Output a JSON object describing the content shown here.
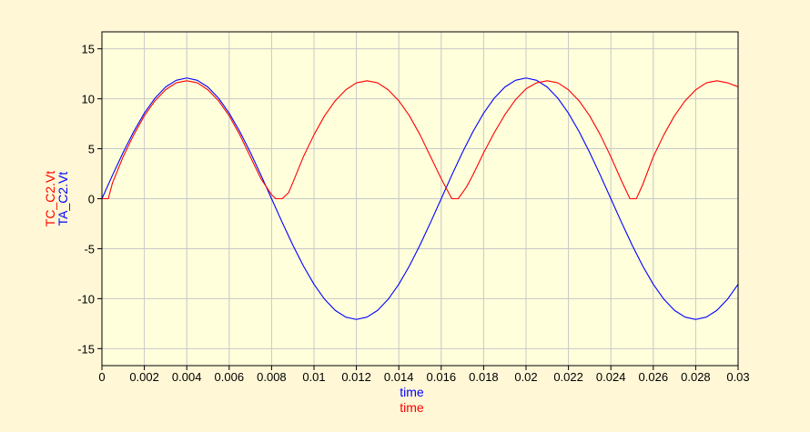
{
  "colors": {
    "background": "#fff7d6",
    "plot_background": "#ffffdc",
    "grid": "#c8c8c8",
    "axis": "#000000"
  },
  "chart_data": {
    "type": "line",
    "grid": true,
    "xlim": [
      0,
      0.03
    ],
    "ylim": [
      -16.7,
      16.7
    ],
    "x_ticks": [
      0,
      0.002,
      0.004,
      0.006,
      0.008,
      0.01,
      0.012,
      0.014,
      0.016,
      0.018,
      0.02,
      0.022,
      0.024,
      0.026,
      0.028,
      0.03
    ],
    "x_tick_labels": [
      "0",
      "0.002",
      "0.004",
      "0.006",
      "0.008",
      "0.01",
      "0.012",
      "0.014",
      "0.016",
      "0.018",
      "0.02",
      "0.022",
      "0.024",
      "0.026",
      "0.028",
      "0.03"
    ],
    "y_ticks": [
      15,
      10,
      5,
      0,
      -5,
      -10,
      -15
    ],
    "y_tick_labels": [
      "15",
      "10",
      "5",
      "0",
      "-5",
      "-10",
      "-15"
    ],
    "xlabels": [
      {
        "text": "time",
        "color": "#0000ff"
      },
      {
        "text": "time",
        "color": "#ff0000"
      }
    ],
    "ylabels": [
      {
        "text": "TC_C2.Vt",
        "color": "#ff0000"
      },
      {
        "text": "TA_C2.Vt",
        "color": "#0000ff"
      }
    ],
    "series": [
      {
        "name": "TA_C2.Vt",
        "color": "#0000ff",
        "x": [
          0,
          0.0005,
          0.001,
          0.0015,
          0.002,
          0.0025,
          0.003,
          0.0035,
          0.004,
          0.0045,
          0.005,
          0.0055,
          0.006,
          0.0065,
          0.007,
          0.0075,
          0.008,
          0.0085,
          0.009,
          0.0095,
          0.01,
          0.0105,
          0.011,
          0.0115,
          0.012,
          0.0125,
          0.013,
          0.0135,
          0.014,
          0.0145,
          0.015,
          0.0155,
          0.016,
          0.0165,
          0.017,
          0.0175,
          0.018,
          0.0185,
          0.019,
          0.0195,
          0.02,
          0.0205,
          0.021,
          0.0215,
          0.022,
          0.0225,
          0.023,
          0.0235,
          0.024,
          0.0245,
          0.025,
          0.0255,
          0.026,
          0.0265,
          0.027,
          0.0275,
          0.028,
          0.0285,
          0.029,
          0.0295,
          0.03
        ],
        "values": [
          0,
          2.36,
          4.63,
          6.72,
          8.56,
          10.06,
          11.17,
          11.85,
          12.08,
          11.85,
          11.17,
          10.06,
          8.56,
          6.72,
          4.63,
          2.36,
          0.0,
          -2.36,
          -4.63,
          -6.72,
          -8.56,
          -10.06,
          -11.17,
          -11.85,
          -12.08,
          -11.85,
          -11.17,
          -10.06,
          -8.56,
          -6.72,
          -4.63,
          -2.36,
          0.0,
          2.36,
          4.63,
          6.72,
          8.56,
          10.06,
          11.17,
          11.85,
          12.08,
          11.85,
          11.17,
          10.06,
          8.56,
          6.72,
          4.63,
          2.36,
          0.0,
          -2.36,
          -4.63,
          -6.72,
          -8.56,
          -10.06,
          -11.17,
          -11.85,
          -12.08,
          -11.85,
          -11.17,
          -10.06,
          -8.56
        ]
      },
      {
        "name": "TC_C2.Vt",
        "color": "#ff0000",
        "x": [
          0,
          0.0003,
          0.0005,
          0.001,
          0.0015,
          0.002,
          0.0025,
          0.003,
          0.0035,
          0.004,
          0.0045,
          0.005,
          0.0055,
          0.006,
          0.0065,
          0.007,
          0.0075,
          0.008,
          0.0082,
          0.0085,
          0.0088,
          0.009,
          0.0095,
          0.01,
          0.0105,
          0.011,
          0.0115,
          0.012,
          0.0125,
          0.013,
          0.0135,
          0.014,
          0.0145,
          0.015,
          0.0155,
          0.016,
          0.0165,
          0.0168,
          0.017,
          0.0172,
          0.0175,
          0.018,
          0.0185,
          0.019,
          0.0195,
          0.02,
          0.0205,
          0.021,
          0.0215,
          0.022,
          0.0225,
          0.023,
          0.0235,
          0.024,
          0.0245,
          0.0249,
          0.0252,
          0.0255,
          0.026,
          0.0265,
          0.027,
          0.0275,
          0.028,
          0.0285,
          0.029,
          0.0295,
          0.03
        ],
        "values": [
          0,
          0.0,
          1.6,
          4.2,
          6.4,
          8.3,
          9.8,
          10.9,
          11.6,
          11.8,
          11.6,
          10.9,
          9.8,
          8.3,
          6.4,
          4.2,
          2.0,
          0.4,
          0.0,
          0.0,
          0.6,
          1.6,
          4.2,
          6.4,
          8.3,
          9.8,
          10.9,
          11.6,
          11.8,
          11.6,
          10.9,
          9.8,
          8.3,
          6.4,
          4.2,
          2.0,
          0.0,
          0.0,
          0.6,
          1.2,
          2.4,
          4.6,
          6.6,
          8.4,
          9.9,
          11.0,
          11.6,
          11.8,
          11.6,
          10.9,
          9.8,
          8.3,
          6.4,
          4.2,
          1.8,
          0.0,
          0.0,
          1.4,
          4.2,
          6.4,
          8.3,
          9.8,
          10.9,
          11.6,
          11.8,
          11.6,
          11.2
        ]
      }
    ]
  }
}
